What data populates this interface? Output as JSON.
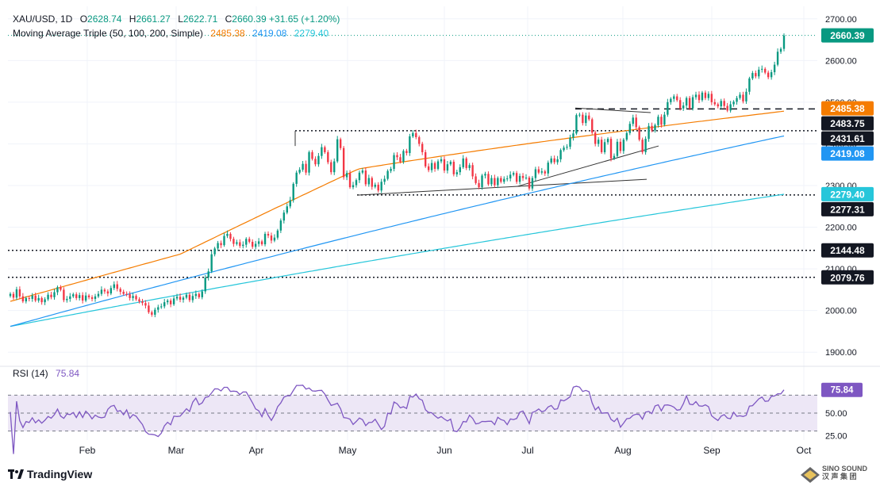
{
  "header": {
    "symbol": "XAU/USD, 1D",
    "open_label": "O",
    "open": "2628.74",
    "high_label": "H",
    "high": "2661.27",
    "low_label": "L",
    "low": "2622.71",
    "close_label": "C",
    "close": "2660.39",
    "change": "+31.65 (+1.20%)",
    "ma_label": "Moving Average Triple (50, 100, 200, Simple)",
    "ma50_value": "2485.38",
    "ma100_value": "2419.08",
    "ma200_value": "2279.40",
    "rsi_label": "RSI (14)",
    "rsi_value": "75.84"
  },
  "colors": {
    "up": "#089981",
    "down": "#f23645",
    "ma50": "#f57c00",
    "ma100": "#2196f3",
    "ma200": "#26c6da",
    "rsi": "#7e57c2",
    "rsi_band": "#ede7f6",
    "grid": "#f0f3fa"
  },
  "footer": {
    "brand": "TradingView"
  },
  "watermark": {
    "line1": "SINO SOUND",
    "line2": "汉 声 集 团"
  },
  "chart_data": {
    "type": "candlestick",
    "price_axis": {
      "ylim": [
        1870,
        2730
      ],
      "ticks": [
        "1900.00",
        "2000.00",
        "2100.00",
        "2200.00",
        "2300.00",
        "2400.00",
        "2500.00",
        "2600.00",
        "2700.00"
      ]
    },
    "x_axis": {
      "ticks": [
        "Feb",
        "Mar",
        "Apr",
        "May",
        "Jun",
        "Jul",
        "Aug",
        "Sep",
        "Oct"
      ]
    },
    "horizontal_levels": [
      {
        "value": 2483.75,
        "label": "2483.75",
        "style": "dashed"
      },
      {
        "value": 2431.61,
        "label": "2431.61",
        "style": "dotted"
      },
      {
        "value": 2277.31,
        "label": "2277.31",
        "style": "dotted"
      },
      {
        "value": 2144.48,
        "label": "2144.48",
        "style": "dotted"
      },
      {
        "value": 2079.76,
        "label": "2079.76",
        "style": "dotted"
      }
    ],
    "price_labels": [
      {
        "value": 2660.39,
        "label": "2660.39",
        "series": "last"
      },
      {
        "value": 2485.38,
        "label": "2485.38",
        "series": "ma50"
      },
      {
        "value": 2419.08,
        "label": "2419.08",
        "series": "ma100"
      },
      {
        "value": 2279.4,
        "label": "2279.40",
        "series": "ma200"
      }
    ],
    "closes": [
      2040,
      2031,
      2051,
      2034,
      2022,
      2030,
      2028,
      2036,
      2024,
      2030,
      2020,
      2027,
      2038,
      2032,
      2044,
      2056,
      2050,
      2025,
      2028,
      2034,
      2039,
      2030,
      2037,
      2024,
      2036,
      2032,
      2028,
      2034,
      2040,
      2050,
      2046,
      2041,
      2054,
      2063,
      2052,
      2045,
      2040,
      2039,
      2030,
      2035,
      2027,
      2022,
      2018,
      2012,
      1996,
      1990,
      2002,
      2008,
      2010,
      2020,
      2024,
      2015,
      2029,
      2033,
      2026,
      2031,
      2038,
      2025,
      2035,
      2040,
      2032,
      2046,
      2079,
      2094,
      2135,
      2149,
      2162,
      2157,
      2179,
      2184,
      2172,
      2160,
      2164,
      2155,
      2158,
      2172,
      2165,
      2153,
      2160,
      2166,
      2159,
      2184,
      2180,
      2168,
      2175,
      2192,
      2216,
      2235,
      2250,
      2265,
      2304,
      2331,
      2338,
      2352,
      2331,
      2380,
      2364,
      2351,
      2371,
      2392,
      2380,
      2356,
      2332,
      2358,
      2411,
      2390,
      2320,
      2330,
      2296,
      2301,
      2313,
      2331,
      2336,
      2303,
      2318,
      2297,
      2302,
      2288,
      2309,
      2316,
      2335,
      2340,
      2373,
      2368,
      2357,
      2383,
      2378,
      2418,
      2426,
      2416,
      2400,
      2380,
      2346,
      2337,
      2354,
      2340,
      2358,
      2363,
      2336,
      2351,
      2357,
      2327,
      2332,
      2344,
      2365,
      2342,
      2349,
      2322,
      2306,
      2296,
      2324,
      2328,
      2303,
      2318,
      2301,
      2318,
      2309,
      2316,
      2317,
      2326,
      2330,
      2309,
      2323,
      2318,
      2319,
      2293,
      2318,
      2339,
      2331,
      2334,
      2329,
      2355,
      2365,
      2356,
      2363,
      2385,
      2391,
      2393,
      2415,
      2425,
      2469,
      2470,
      2450,
      2468,
      2459,
      2427,
      2400,
      2410,
      2380,
      2404,
      2412,
      2365,
      2371,
      2405,
      2383,
      2410,
      2426,
      2448,
      2463,
      2440,
      2410,
      2380,
      2412,
      2443,
      2432,
      2445,
      2465,
      2446,
      2470,
      2500,
      2508,
      2514,
      2505,
      2485,
      2492,
      2510,
      2485,
      2512,
      2518,
      2505,
      2523,
      2510,
      2520,
      2500,
      2495,
      2490,
      2503,
      2491,
      2480,
      2495,
      2501,
      2510,
      2518,
      2502,
      2525,
      2557,
      2570,
      2562,
      2578,
      2580,
      2571,
      2560,
      2572,
      2590,
      2621,
      2628,
      2660
    ],
    "ma50": [
      2022,
      2280,
      2480
    ],
    "ma100": [
      1962,
      2220,
      2419
    ],
    "ma200": [
      1962,
      2140,
      2279
    ],
    "rsi": {
      "ylim": [
        20,
        95
      ],
      "levels": [
        70,
        50,
        30
      ],
      "ticks": [
        "75.00",
        "50.00",
        "25.00"
      ],
      "last": 75.84
    }
  }
}
